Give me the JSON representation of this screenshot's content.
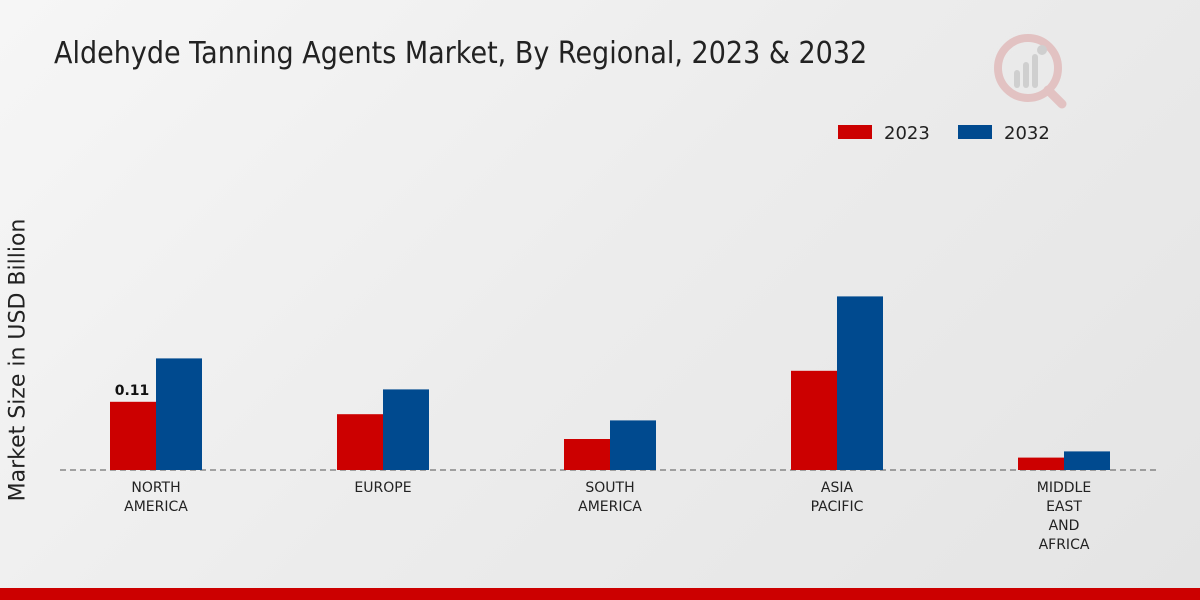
{
  "chart_data": {
    "type": "bar",
    "title": "Aldehyde Tanning Agents Market, By Regional, 2023 & 2032",
    "ylabel": "Market Size in USD Billion",
    "xlabel": "",
    "categories": [
      [
        "NORTH",
        "AMERICA"
      ],
      [
        "EUROPE"
      ],
      [
        "SOUTH",
        "AMERICA"
      ],
      [
        "ASIA",
        "PACIFIC"
      ],
      [
        "MIDDLE",
        "EAST",
        "AND",
        "AFRICA"
      ]
    ],
    "series": [
      {
        "name": "2023",
        "color": "#cc0000",
        "values": [
          0.11,
          0.09,
          0.05,
          0.16,
          0.02
        ]
      },
      {
        "name": "2032",
        "color": "#004a8f",
        "values": [
          0.18,
          0.13,
          0.08,
          0.28,
          0.03
        ]
      }
    ],
    "data_labels": [
      {
        "series": 0,
        "index": 0,
        "text": "0.11"
      }
    ],
    "ylim": [
      0,
      0.5
    ],
    "grid": false,
    "legend_position": "top-right",
    "baseline_style": "dashed"
  },
  "colors": {
    "accent_bar": "#cc0000",
    "logo": "#d9b3b3"
  },
  "icons": {
    "logo": "brand-logo-icon"
  }
}
